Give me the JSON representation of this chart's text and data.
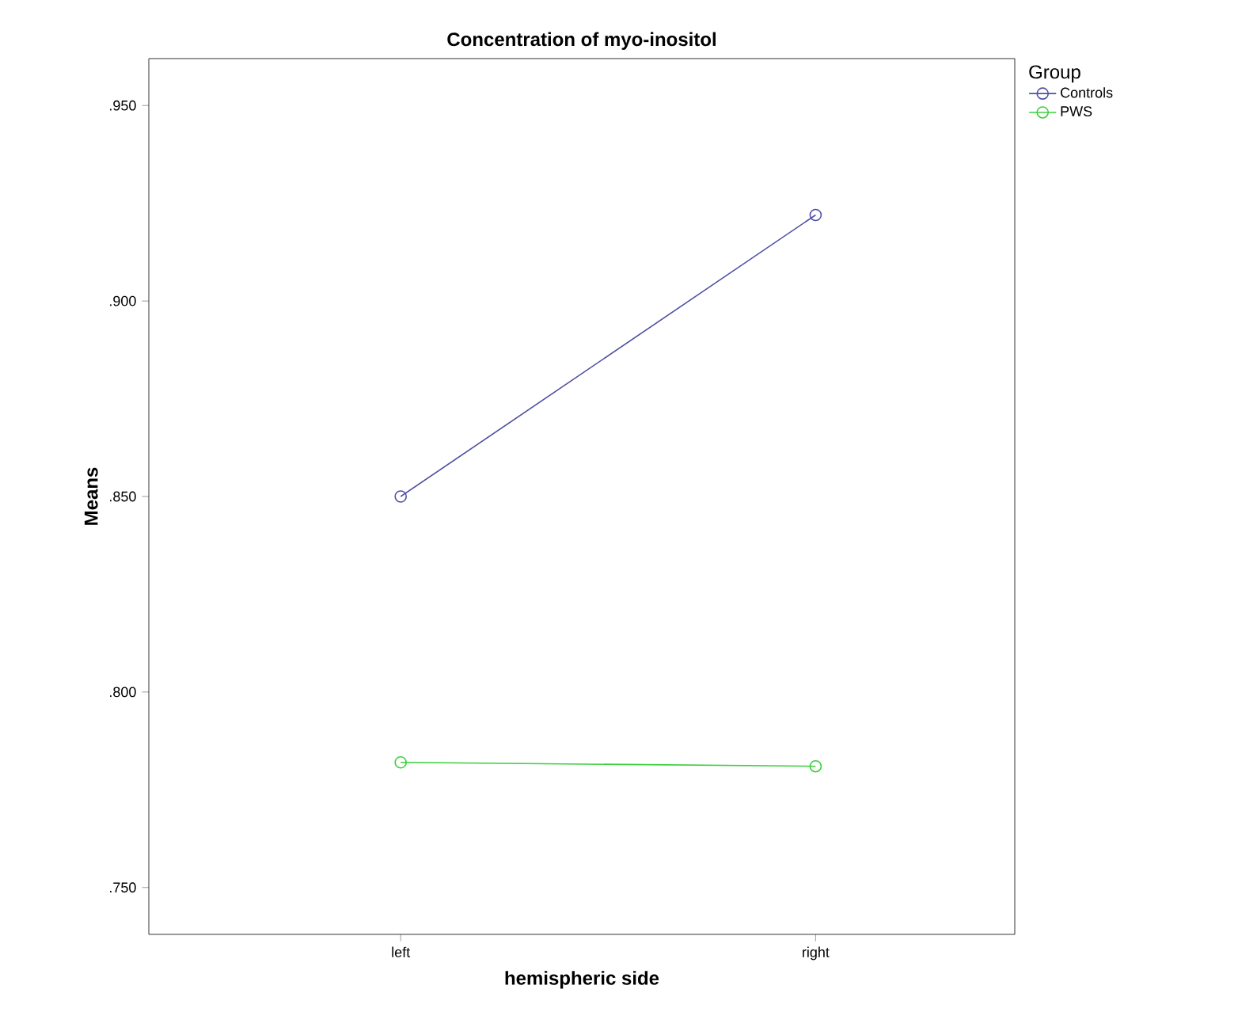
{
  "chart_data": {
    "type": "line",
    "title": "Concentration of myo-inositol",
    "xlabel": "hemispheric side",
    "ylabel": "Means",
    "legend_title": "Group",
    "categories": [
      "left",
      "right"
    ],
    "series": [
      {
        "name": "Controls",
        "color": "#4f4fa3",
        "values": [
          0.85,
          0.922
        ]
      },
      {
        "name": "PWS",
        "color": "#3ccf3c",
        "values": [
          0.782,
          0.781
        ]
      }
    ],
    "ylim": [
      0.738,
      0.962
    ],
    "yticks": [
      {
        "value": 0.75,
        "label": ".750"
      },
      {
        "value": 0.8,
        "label": ".800"
      },
      {
        "value": 0.85,
        "label": ".850"
      },
      {
        "value": 0.9,
        "label": ".900"
      },
      {
        "value": 0.95,
        "label": ".950"
      }
    ],
    "grid": false,
    "legend": "top right",
    "marker": "circle",
    "line_style": "solid"
  }
}
